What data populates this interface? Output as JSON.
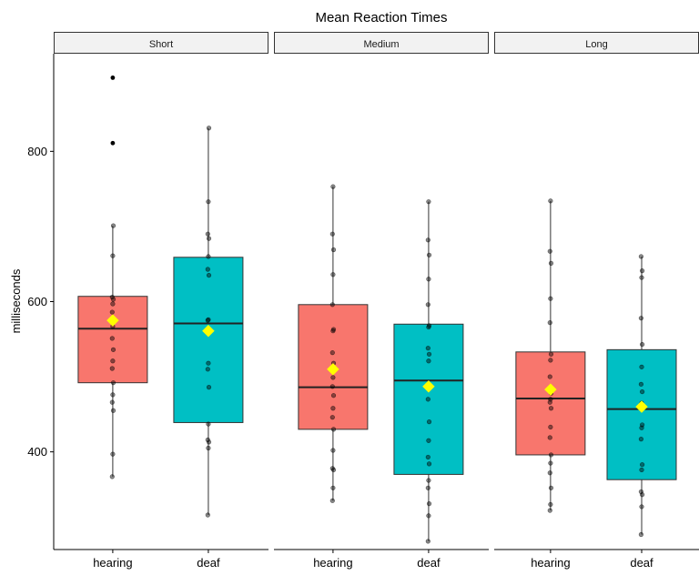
{
  "chart_data": {
    "type": "boxplot",
    "title": "Mean Reaction Times",
    "ylabel": "milliseconds",
    "ylim": [
      270,
      930
    ],
    "y_ticks": [
      400,
      600,
      800
    ],
    "grid": false,
    "legend": "none",
    "colors": {
      "hearing": "#F8766D",
      "deaf": "#00BFC4",
      "mean": "#FFFF00"
    },
    "panels": [
      {
        "label": "Short",
        "groups": [
          {
            "name": "hearing",
            "q1": 492,
            "median": 564,
            "q3": 607,
            "whisker_low": 367,
            "whisker_high": 701,
            "mean": 575,
            "points": [
              367,
              397,
              455,
              466,
              476,
              492,
              511,
              521,
              536,
              551,
              567,
              575,
              586,
              597,
              603,
              606,
              661,
              701
            ],
            "outliers": [
              811,
              898
            ]
          },
          {
            "name": "deaf",
            "q1": 439,
            "median": 571,
            "q3": 659,
            "whisker_low": 316,
            "whisker_high": 831,
            "mean": 561,
            "points": [
              316,
              405,
              413,
              416,
              437,
              486,
              510,
              518,
              561,
              575,
              576,
              635,
              643,
              660,
              684,
              690,
              733,
              831
            ],
            "outliers": []
          }
        ]
      },
      {
        "label": "Medium",
        "groups": [
          {
            "name": "hearing",
            "q1": 430,
            "median": 486,
            "q3": 596,
            "whisker_low": 335,
            "whisker_high": 753,
            "mean": 510,
            "points": [
              335,
              352,
              376,
              378,
              402,
              430,
              446,
              458,
              475,
              487,
              499,
              518,
              532,
              561,
              563,
              596,
              636,
              669,
              690,
              753
            ],
            "outliers": []
          },
          {
            "name": "deaf",
            "q1": 370,
            "median": 495,
            "q3": 570,
            "whisker_low": 281,
            "whisker_high": 733,
            "mean": 487,
            "points": [
              281,
              315,
              331,
              352,
              362,
              384,
              393,
              415,
              440,
              470,
              521,
              530,
              538,
              566,
              568,
              596,
              630,
              662,
              682,
              733
            ],
            "outliers": []
          }
        ]
      },
      {
        "label": "Long",
        "groups": [
          {
            "name": "hearing",
            "q1": 396,
            "median": 471,
            "q3": 533,
            "whisker_low": 322,
            "whisker_high": 734,
            "mean": 483,
            "points": [
              322,
              330,
              352,
              372,
              385,
              396,
              419,
              433,
              458,
              466,
              470,
              478,
              500,
              522,
              530,
              572,
              604,
              651,
              667,
              734
            ],
            "outliers": []
          },
          {
            "name": "deaf",
            "q1": 363,
            "median": 457,
            "q3": 536,
            "whisker_low": 290,
            "whisker_high": 660,
            "mean": 460,
            "points": [
              290,
              327,
              343,
              347,
              376,
              383,
              417,
              432,
              436,
              458,
              465,
              480,
              490,
              513,
              543,
              578,
              632,
              641,
              660
            ],
            "outliers": []
          }
        ]
      }
    ]
  }
}
